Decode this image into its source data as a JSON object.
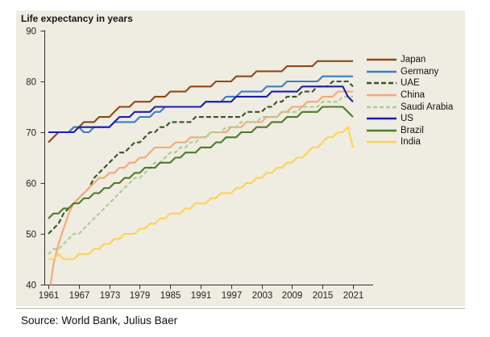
{
  "page": {
    "title": "Life expectancy in years",
    "source": "Source: World Bank, Julius Baer"
  },
  "colors": {
    "page_background": "#ffffff",
    "panel_background": "#efece2",
    "axis": "#333333",
    "tick_text": "#1f1f1f",
    "separator": "#b8b6ac"
  },
  "chart_data": {
    "type": "line",
    "title": "Life expectancy in years",
    "xlabel": "",
    "ylabel": "Life expectancy in years",
    "grid": false,
    "legend_position": "right",
    "ylim": [
      40,
      90
    ],
    "x_start_year": 1961,
    "x_end_year": 2021,
    "x_ticks": [
      1961,
      1967,
      1973,
      1979,
      1985,
      1991,
      1997,
      2003,
      2009,
      2015,
      2021
    ],
    "y_ticks": [
      90,
      80,
      70,
      60,
      50,
      40
    ],
    "series": [
      {
        "id": "japan",
        "name": "Japan",
        "color": "#8f4814",
        "dash": null,
        "values": [
          68,
          69,
          70,
          70,
          70,
          71,
          71,
          72,
          72,
          72,
          73,
          73,
          73,
          74,
          75,
          75,
          75,
          76,
          76,
          76,
          76,
          77,
          77,
          77,
          78,
          78,
          78,
          78,
          79,
          79,
          79,
          79,
          79,
          80,
          80,
          80,
          80,
          81,
          81,
          81,
          81,
          82,
          82,
          82,
          82,
          82,
          82,
          83,
          83,
          83,
          83,
          83,
          83,
          84,
          84,
          84,
          84,
          84,
          84,
          84,
          84
        ]
      },
      {
        "id": "germany",
        "name": "Germany",
        "color": "#3e7dc1",
        "dash": null,
        "values": [
          70,
          70,
          70,
          70,
          70,
          71,
          71,
          70,
          70,
          71,
          71,
          71,
          71,
          72,
          72,
          72,
          72,
          72,
          73,
          73,
          73,
          74,
          74,
          75,
          75,
          75,
          75,
          75,
          75,
          75,
          75,
          76,
          76,
          76,
          76,
          77,
          77,
          77,
          78,
          78,
          78,
          78,
          78,
          79,
          79,
          79,
          79,
          80,
          80,
          80,
          80,
          80,
          80,
          80,
          81,
          81,
          81,
          81,
          81,
          81,
          81
        ]
      },
      {
        "id": "uae",
        "name": "UAE",
        "color": "#375623",
        "dash": "6 3",
        "values": [
          50,
          51,
          52,
          54,
          55,
          56,
          57,
          58,
          59,
          61,
          62,
          63,
          64,
          65,
          66,
          66,
          67,
          68,
          68,
          69,
          70,
          70,
          71,
          71,
          72,
          72,
          72,
          72,
          72,
          73,
          73,
          73,
          73,
          73,
          73,
          73,
          73,
          73,
          73,
          74,
          74,
          74,
          74,
          75,
          75,
          76,
          76,
          77,
          77,
          77,
          78,
          78,
          78,
          79,
          79,
          79,
          80,
          80,
          80,
          80,
          79
        ]
      },
      {
        "id": "china",
        "name": "China",
        "color": "#f5a876",
        "dash": null,
        "values": [
          37,
          44,
          48,
          51,
          54,
          56,
          57,
          58,
          59,
          60,
          61,
          61,
          62,
          62,
          63,
          63,
          64,
          64,
          65,
          65,
          66,
          67,
          67,
          67,
          67,
          68,
          68,
          68,
          69,
          69,
          69,
          69,
          70,
          70,
          70,
          70,
          71,
          71,
          71,
          72,
          72,
          72,
          72,
          73,
          73,
          73,
          74,
          74,
          75,
          75,
          75,
          76,
          76,
          76,
          77,
          77,
          77,
          78,
          78,
          78,
          78
        ]
      },
      {
        "id": "saudi-arabia",
        "name": "Saudi Arabia",
        "color": "#a8cf8e",
        "dash": "5 3",
        "values": [
          46,
          47,
          47,
          48,
          49,
          50,
          50,
          51,
          52,
          53,
          54,
          55,
          56,
          57,
          58,
          59,
          60,
          61,
          61,
          62,
          63,
          64,
          64,
          65,
          66,
          66,
          67,
          67,
          68,
          68,
          69,
          69,
          70,
          70,
          70,
          71,
          71,
          71,
          72,
          72,
          72,
          72,
          73,
          73,
          73,
          73,
          74,
          74,
          74,
          74,
          75,
          75,
          75,
          75,
          76,
          76,
          76,
          76,
          77,
          77,
          77
        ]
      },
      {
        "id": "us",
        "name": "US",
        "color": "#1d1db2",
        "dash": null,
        "values": [
          70,
          70,
          70,
          70,
          70,
          70,
          71,
          71,
          71,
          71,
          71,
          71,
          71,
          72,
          73,
          73,
          73,
          74,
          74,
          74,
          74,
          75,
          75,
          75,
          75,
          75,
          75,
          75,
          75,
          75,
          75,
          76,
          76,
          76,
          76,
          76,
          76,
          77,
          77,
          77,
          77,
          77,
          77,
          77,
          78,
          78,
          78,
          78,
          78,
          78,
          79,
          79,
          79,
          79,
          79,
          79,
          79,
          79,
          79,
          77,
          76
        ]
      },
      {
        "id": "brazil",
        "name": "Brazil",
        "color": "#4f7a28",
        "dash": null,
        "values": [
          53,
          54,
          54,
          55,
          55,
          56,
          56,
          57,
          57,
          58,
          58,
          59,
          59,
          60,
          60,
          61,
          61,
          62,
          62,
          63,
          63,
          63,
          64,
          64,
          64,
          65,
          65,
          66,
          66,
          66,
          67,
          67,
          67,
          68,
          68,
          69,
          69,
          69,
          70,
          70,
          70,
          71,
          71,
          71,
          72,
          72,
          72,
          73,
          73,
          73,
          74,
          74,
          74,
          74,
          75,
          75,
          75,
          75,
          75,
          74,
          73
        ]
      },
      {
        "id": "india",
        "name": "India",
        "color": "#ffd34f",
        "dash": null,
        "values": [
          45,
          45,
          46,
          45,
          45,
          45,
          46,
          46,
          46,
          47,
          47,
          48,
          48,
          49,
          49,
          50,
          50,
          50,
          51,
          51,
          52,
          52,
          53,
          53,
          54,
          54,
          54,
          55,
          55,
          56,
          56,
          56,
          57,
          57,
          58,
          58,
          58,
          59,
          59,
          60,
          60,
          61,
          61,
          62,
          62,
          63,
          63,
          64,
          64,
          65,
          65,
          66,
          67,
          67,
          68,
          69,
          69,
          70,
          70,
          71,
          67
        ]
      }
    ]
  }
}
